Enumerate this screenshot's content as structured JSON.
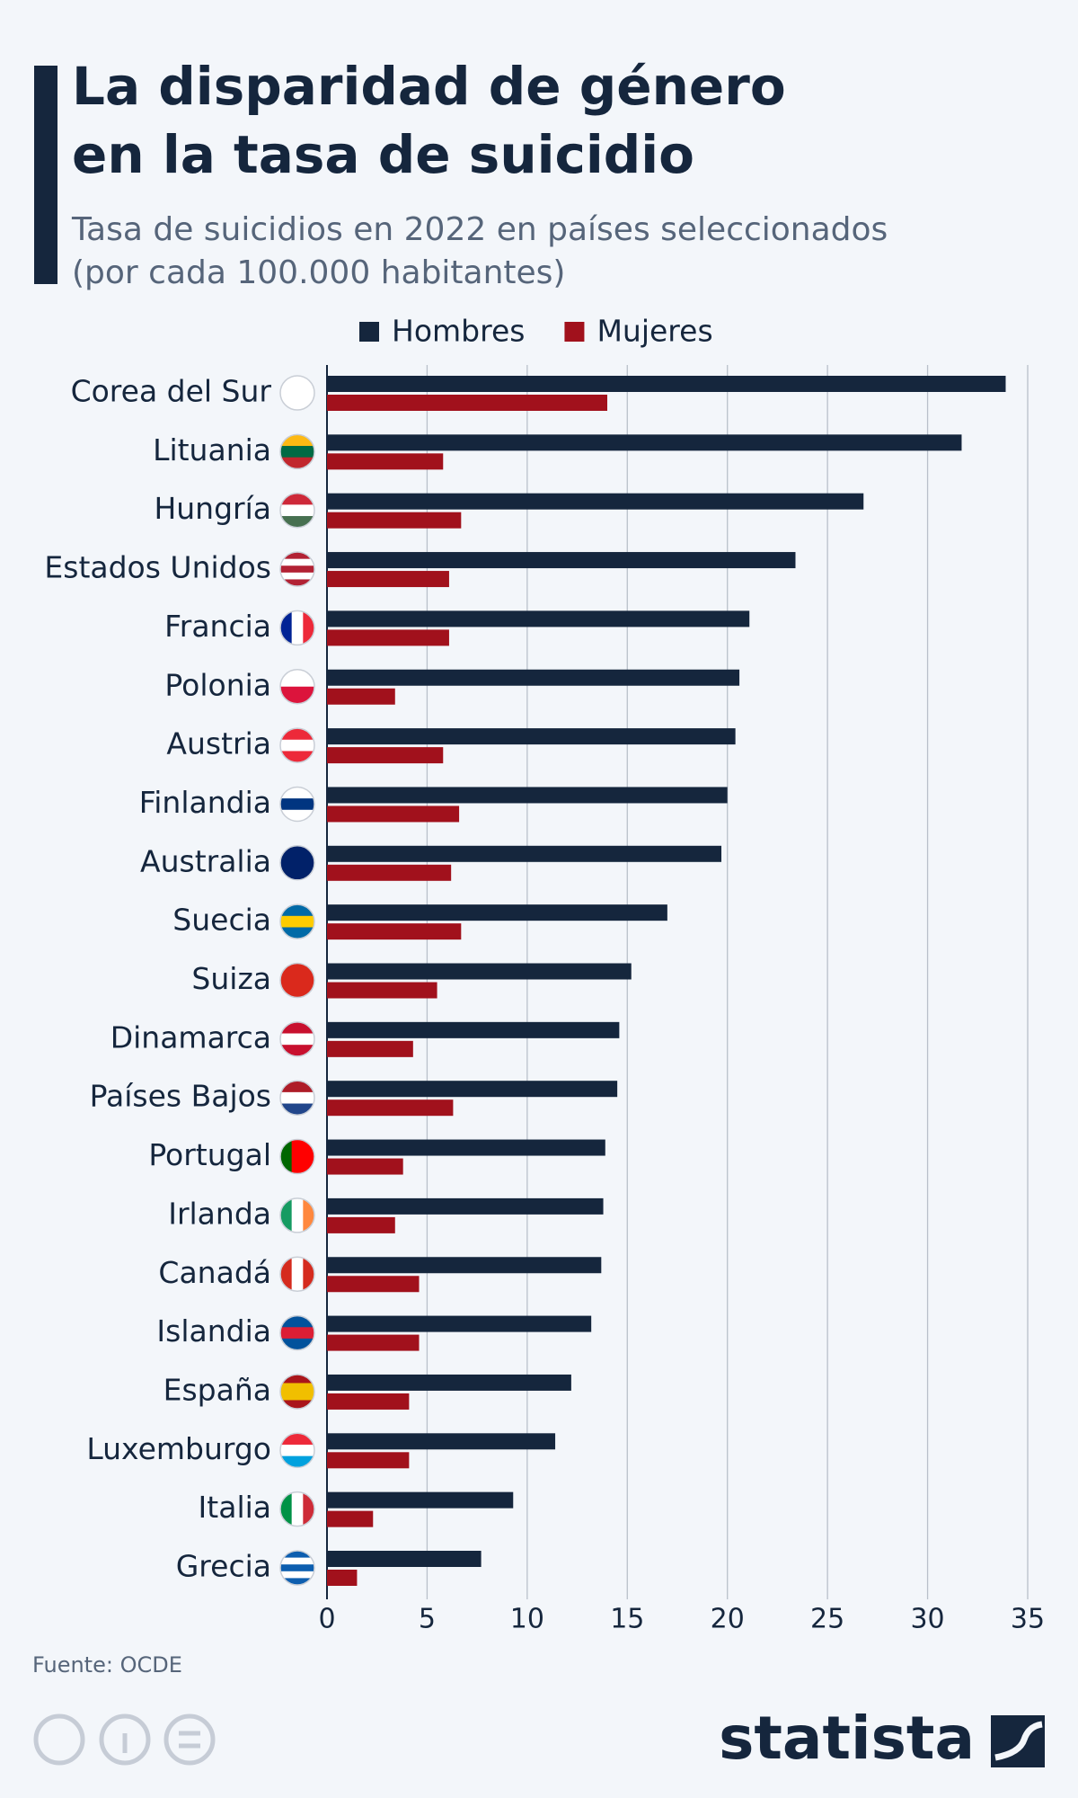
{
  "chart_data": {
    "type": "bar",
    "orientation": "horizontal",
    "title": "La disparidad de género en la tasa de suicidio",
    "subtitle": "Tasa de suicidios en 2022 en países seleccionados (por cada 100.000 habitantes)",
    "categories": [
      "Corea del Sur",
      "Lituania",
      "Hungría",
      "Estados Unidos",
      "Francia",
      "Polonia",
      "Austria",
      "Finlandia",
      "Australia",
      "Suecia",
      "Suiza",
      "Dinamarca",
      "Países Bajos",
      "Portugal",
      "Irlanda",
      "Canadá",
      "Islandia",
      "España",
      "Luxemburgo",
      "Italia",
      "Grecia"
    ],
    "series": [
      {
        "name": "Hombres",
        "color": "#15263d",
        "values": [
          33.9,
          31.7,
          26.8,
          23.4,
          21.1,
          20.6,
          20.4,
          20.0,
          19.7,
          17.0,
          15.2,
          14.6,
          14.5,
          13.9,
          13.8,
          13.7,
          13.2,
          12.2,
          11.4,
          9.3,
          7.7
        ]
      },
      {
        "name": "Mujeres",
        "color": "#a1111c",
        "values": [
          14.0,
          5.8,
          6.7,
          6.1,
          6.1,
          3.4,
          5.8,
          6.6,
          6.2,
          6.7,
          5.5,
          4.3,
          6.3,
          3.8,
          3.4,
          4.6,
          4.6,
          4.1,
          4.1,
          2.3,
          1.5
        ]
      }
    ],
    "xlim": [
      0,
      35
    ],
    "xticks": [
      0,
      5,
      10,
      15,
      20,
      25,
      30,
      35
    ],
    "grid": true,
    "legend": "top",
    "source": "Fuente: OCDE",
    "brand": "statista"
  }
}
